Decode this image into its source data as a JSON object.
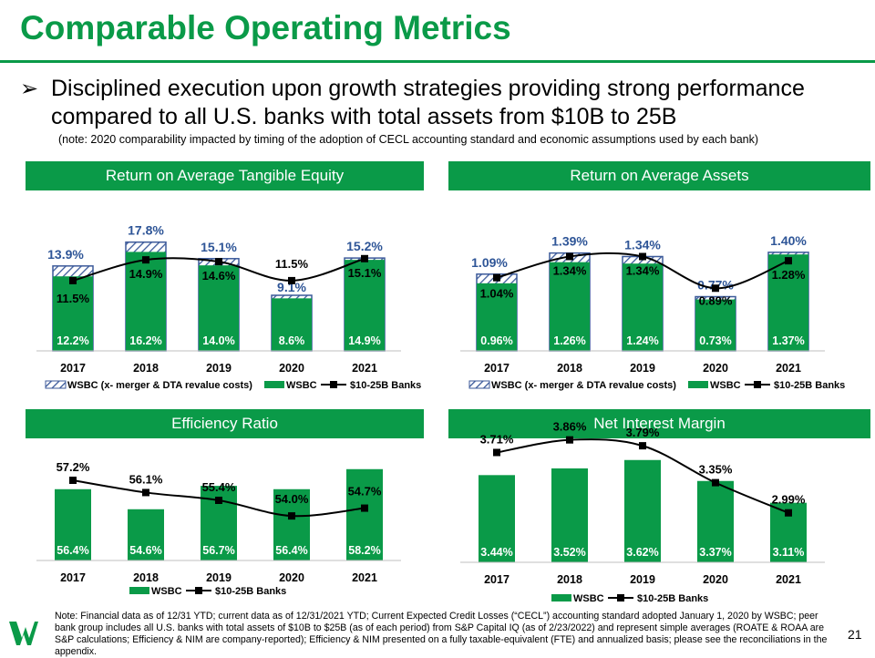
{
  "page": {
    "title": "Comparable Operating Metrics",
    "bullet_arrow": "➢",
    "bullet": "Disciplined execution upon growth strategies providing strong performance compared to all U.S. banks with total assets from $10B to 25B",
    "note": "(note: 2020 comparability impacted by timing of the adoption of CECL accounting standard and economic assumptions used by each bank)",
    "footnote": "Note: Financial data as of 12/31 YTD; current data as of 12/31/2021 YTD; Current Expected Credit Losses (“CECL”) accounting standard adopted January 1, 2020 by WSBC; peer bank group includes all U.S. banks with total assets of $10B to $25B (as of each period) from S&P Capital IQ (as of 2/23/2022) and represent simple averages (ROATE & ROAA are S&P calculations; Efficiency & NIM are company-reported); Efficiency & NIM presented on a fully taxable-equivalent (FTE) and annualized basis; please see the reconciliations in the appendix.",
    "page_number": "21",
    "colors": {
      "green": "#0a9a48",
      "navy": "#1f3864",
      "hatch": "#3c5a9a",
      "text_blue": "#2e5597"
    }
  },
  "chart_data": [
    {
      "id": "roate",
      "type": "bar",
      "title": "Return on Average Tangible Equity",
      "categories": [
        "2017",
        "2018",
        "2019",
        "2020",
        "2021"
      ],
      "series": [
        {
          "name": "WSBC (x- merger & DTA revalue costs)",
          "values": [
            13.9,
            17.8,
            15.1,
            9.1,
            15.2
          ],
          "labels": [
            "13.9%",
            "17.8%",
            "15.1%",
            "9.1%",
            "15.2%"
          ]
        },
        {
          "name": "WSBC",
          "values": [
            12.2,
            16.2,
            14.0,
            8.6,
            14.9
          ],
          "labels": [
            "12.2%",
            "16.2%",
            "14.0%",
            "8.6%",
            "14.9%"
          ]
        },
        {
          "name": "$10-25B Banks",
          "values": [
            11.5,
            14.9,
            14.6,
            11.5,
            15.1
          ],
          "labels": [
            "11.5%",
            "14.9%",
            "14.6%",
            "11.5%",
            "15.1%"
          ]
        }
      ],
      "ylim": [
        0,
        18.5
      ]
    },
    {
      "id": "roaa",
      "type": "bar",
      "title": "Return on Average Assets",
      "categories": [
        "2017",
        "2018",
        "2019",
        "2020",
        "2021"
      ],
      "series": [
        {
          "name": "WSBC (x- merger & DTA revalue costs)",
          "values": [
            1.09,
            1.39,
            1.34,
            0.77,
            1.4
          ],
          "labels": [
            "1.09%",
            "1.39%",
            "1.34%",
            "0.77%",
            "1.40%"
          ]
        },
        {
          "name": "WSBC",
          "values": [
            0.96,
            1.26,
            1.24,
            0.73,
            1.37
          ],
          "labels": [
            "0.96%",
            "1.26%",
            "1.24%",
            "0.73%",
            "1.37%"
          ]
        },
        {
          "name": "$10-25B Banks",
          "values": [
            1.04,
            1.34,
            1.34,
            0.89,
            1.28
          ],
          "labels": [
            "1.04%",
            "1.34%",
            "1.34%",
            "0.89%",
            "1.28%"
          ]
        }
      ],
      "ylim": [
        0,
        1.45
      ]
    },
    {
      "id": "efficiency",
      "type": "bar",
      "title": "Efficiency Ratio",
      "categories": [
        "2017",
        "2018",
        "2019",
        "2020",
        "2021"
      ],
      "series": [
        {
          "name": "WSBC",
          "values": [
            56.4,
            54.6,
            56.7,
            56.4,
            58.2
          ],
          "labels": [
            "56.4%",
            "54.6%",
            "56.7%",
            "56.4%",
            "58.2%"
          ]
        },
        {
          "name": "$10-25B Banks",
          "values": [
            57.2,
            56.1,
            55.4,
            54.0,
            54.7
          ],
          "labels": [
            "57.2%",
            "56.1%",
            "55.4%",
            "54.0%",
            "54.7%"
          ]
        }
      ],
      "ylim": [
        50,
        59
      ]
    },
    {
      "id": "nim",
      "type": "bar",
      "title": "Net Interest Margin",
      "categories": [
        "2017",
        "2018",
        "2019",
        "2020",
        "2021"
      ],
      "series": [
        {
          "name": "WSBC",
          "values": [
            3.44,
            3.52,
            3.62,
            3.37,
            3.11
          ],
          "labels": [
            "3.44%",
            "3.52%",
            "3.62%",
            "3.37%",
            "3.11%"
          ]
        },
        {
          "name": "$10-25B Banks",
          "values": [
            3.71,
            3.86,
            3.79,
            3.35,
            2.99
          ],
          "labels": [
            "3.71%",
            "3.86%",
            "3.79%",
            "3.35%",
            "2.99%"
          ]
        }
      ],
      "ylim": [
        2.4,
        3.9
      ]
    }
  ]
}
